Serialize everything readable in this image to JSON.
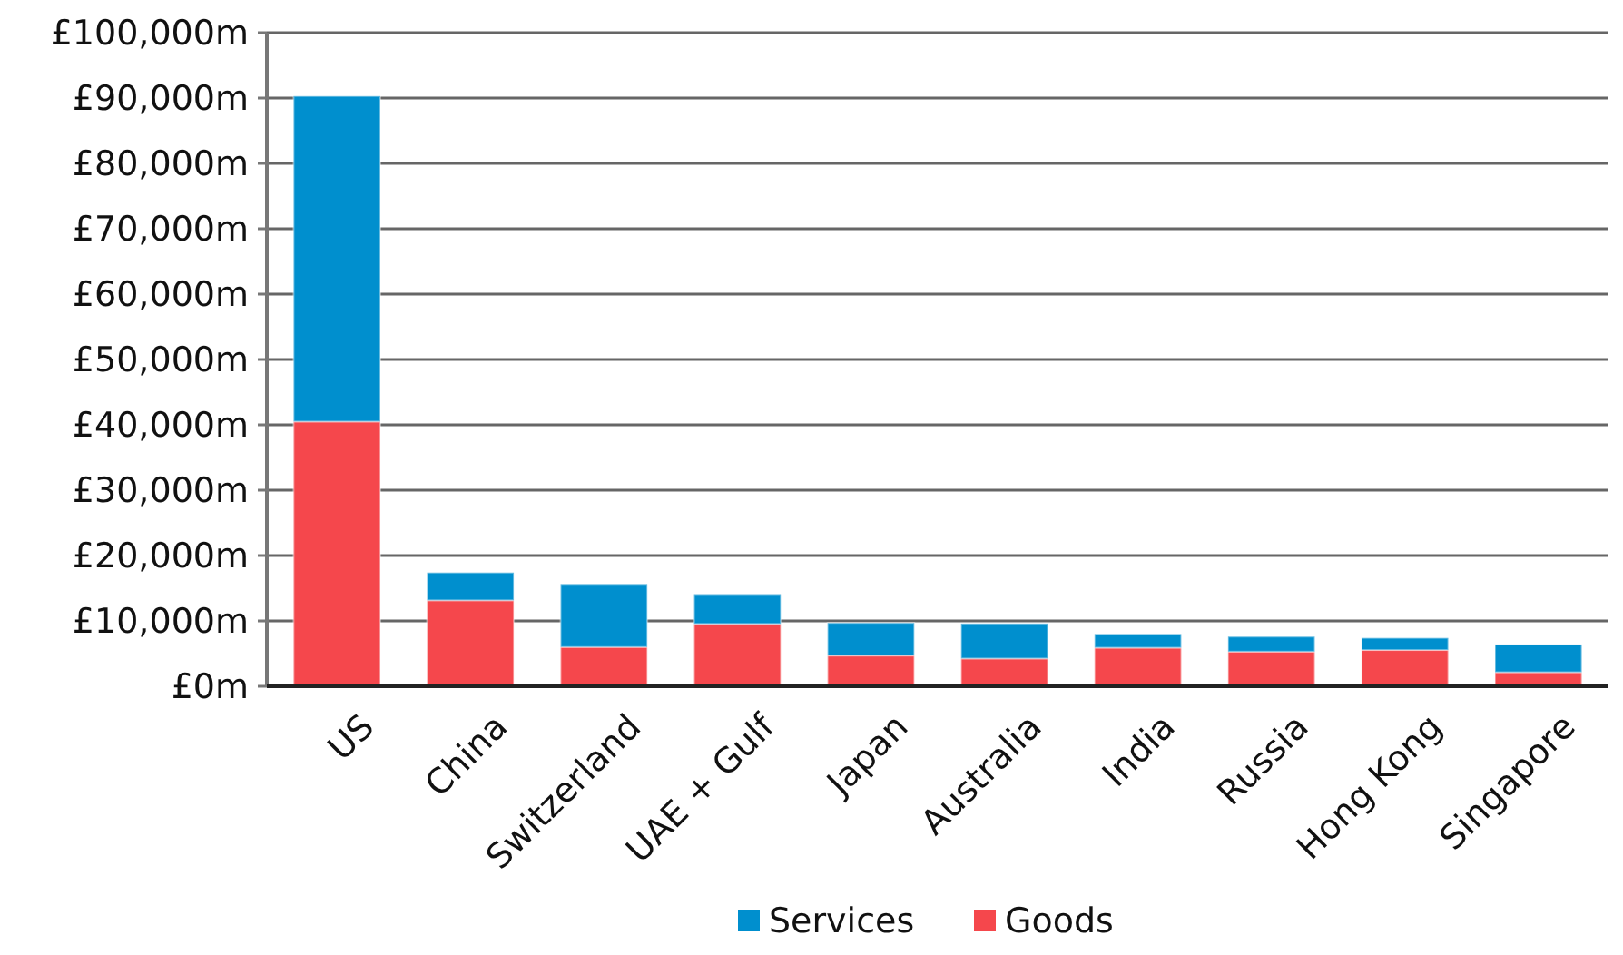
{
  "chart_data": {
    "type": "bar",
    "stacked": true,
    "categories": [
      "US",
      "China",
      "Switzerland",
      "UAE + Gulf",
      "Japan",
      "Australia",
      "India",
      "Russia",
      "Hong Kong",
      "Singapore"
    ],
    "series": [
      {
        "name": "Goods",
        "color": "#f5474c",
        "values": [
          40500,
          13150,
          6000,
          9550,
          4700,
          4250,
          5900,
          5300,
          5550,
          2150
        ]
      },
      {
        "name": "Services",
        "color": "#008fce",
        "values": [
          49800,
          4250,
          9650,
          4550,
          5000,
          5350,
          2100,
          2300,
          1850,
          4250
        ]
      }
    ],
    "ylim": [
      0,
      100000
    ],
    "yticks": [
      {
        "value": 0,
        "label": "£0m"
      },
      {
        "value": 10000,
        "label": "£10,000m"
      },
      {
        "value": 20000,
        "label": "£20,000m"
      },
      {
        "value": 30000,
        "label": "£30,000m"
      },
      {
        "value": 40000,
        "label": "£40,000m"
      },
      {
        "value": 50000,
        "label": "£50,000m"
      },
      {
        "value": 60000,
        "label": "£60,000m"
      },
      {
        "value": 70000,
        "label": "£70,000m"
      },
      {
        "value": 80000,
        "label": "£80,000m"
      },
      {
        "value": 90000,
        "label": "£90,000m"
      },
      {
        "value": 100000,
        "label": "£100,000m"
      }
    ],
    "grid": "y",
    "legend": "bottom"
  }
}
